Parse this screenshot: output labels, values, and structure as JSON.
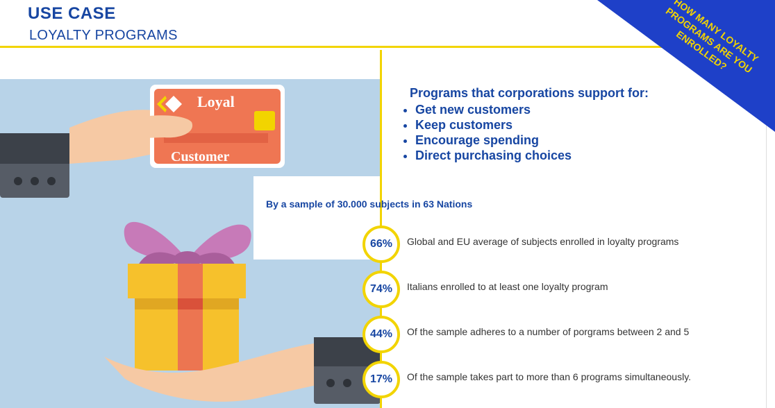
{
  "header": {
    "title": "USE CASE",
    "subtitle": "LOYALTY  PROGRAMS"
  },
  "banner": {
    "lines": [
      "HOW MANY LOYALTY",
      "PROGRAMS ARE YOU",
      "ENROLLED?"
    ]
  },
  "card": {
    "top_text": "Loyal",
    "bottom_text": "Customer"
  },
  "programs": {
    "heading": "Programs that corporations support for:",
    "items": [
      "Get new customers",
      "Keep customers",
      "Encourage spending",
      "Direct purchasing choices"
    ]
  },
  "sample_note": "By a sample of 30.000 subjects in 63 Nations",
  "stats": [
    {
      "percent": "66%",
      "text": "Global and EU average of subjects enrolled in loyalty programs"
    },
    {
      "percent": "74%",
      "text": "Italians enrolled to at least one loyalty program"
    },
    {
      "percent": "44%",
      "text": "Of the sample adheres to a number of porgrams between 2 and 5"
    },
    {
      "percent": "17%",
      "text": "Of the sample takes part to more than 6 programs simultaneously."
    }
  ],
  "colors": {
    "brand_blue": "#1746a2",
    "accent_yellow": "#f2d400",
    "banner_blue": "#1e40c8",
    "card_orange": "#ef7653"
  }
}
